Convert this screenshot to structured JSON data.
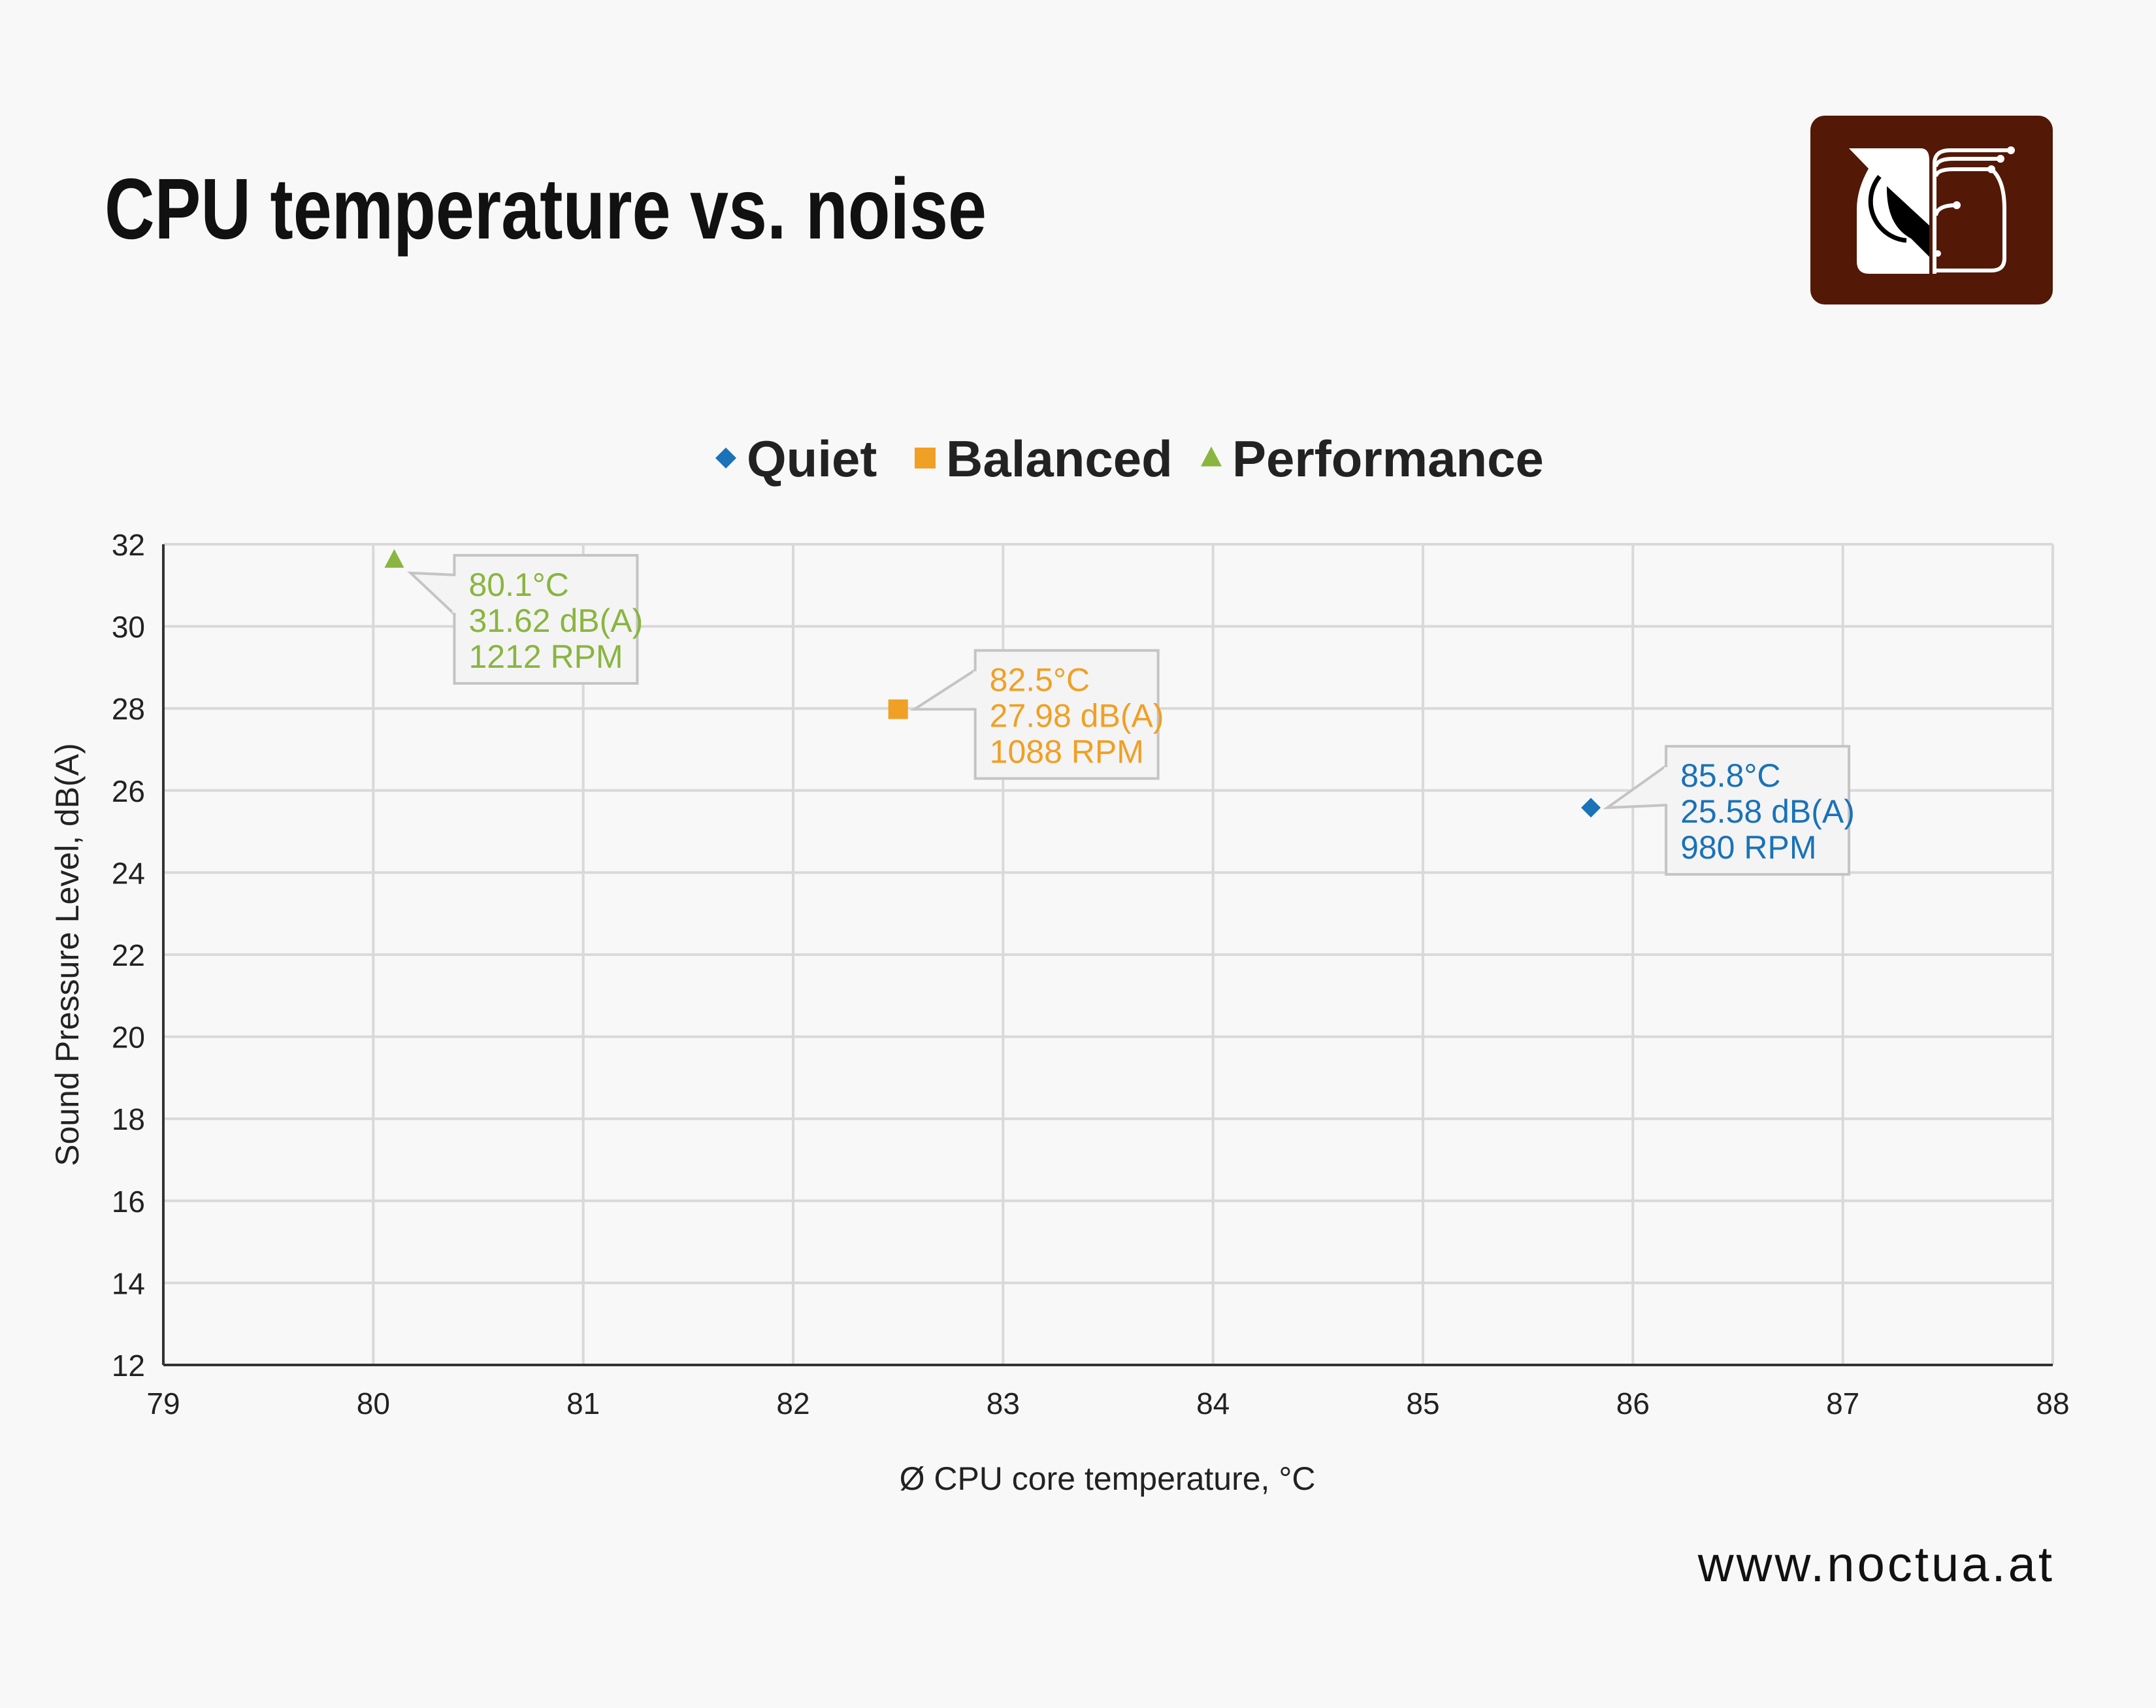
{
  "title": "CPU temperature vs. noise",
  "website": "www.noctua.at",
  "logo": {
    "name": "noctua-owl-logo",
    "color": "#531806"
  },
  "chart_data": {
    "type": "scatter",
    "xlabel": "Ø CPU core temperature, °C",
    "ylabel": "Sound Pressure Level, dB(A)",
    "xlim": [
      79,
      88
    ],
    "ylim": [
      12,
      32
    ],
    "xticks": [
      79,
      80,
      81,
      82,
      83,
      84,
      85,
      86,
      87,
      88
    ],
    "yticks": [
      12,
      14,
      16,
      18,
      20,
      22,
      24,
      26,
      28,
      30,
      32
    ],
    "grid": true,
    "legend_position": "top-center",
    "series": [
      {
        "name": "Quiet",
        "marker": "diamond",
        "color": "#1a72b8",
        "x": 85.8,
        "y": 25.58,
        "labels": [
          "85.8°C",
          "25.58 dB(A)",
          "980 RPM"
        ]
      },
      {
        "name": "Balanced",
        "marker": "square",
        "color": "#f0a024",
        "x": 82.5,
        "y": 27.98,
        "labels": [
          "82.5°C",
          "27.98 dB(A)",
          "1088 RPM"
        ]
      },
      {
        "name": "Performance",
        "marker": "triangle",
        "color": "#8ab53f",
        "x": 80.1,
        "y": 31.62,
        "labels": [
          "80.1°C",
          "31.62 dB(A)",
          "1212 RPM"
        ]
      }
    ]
  }
}
